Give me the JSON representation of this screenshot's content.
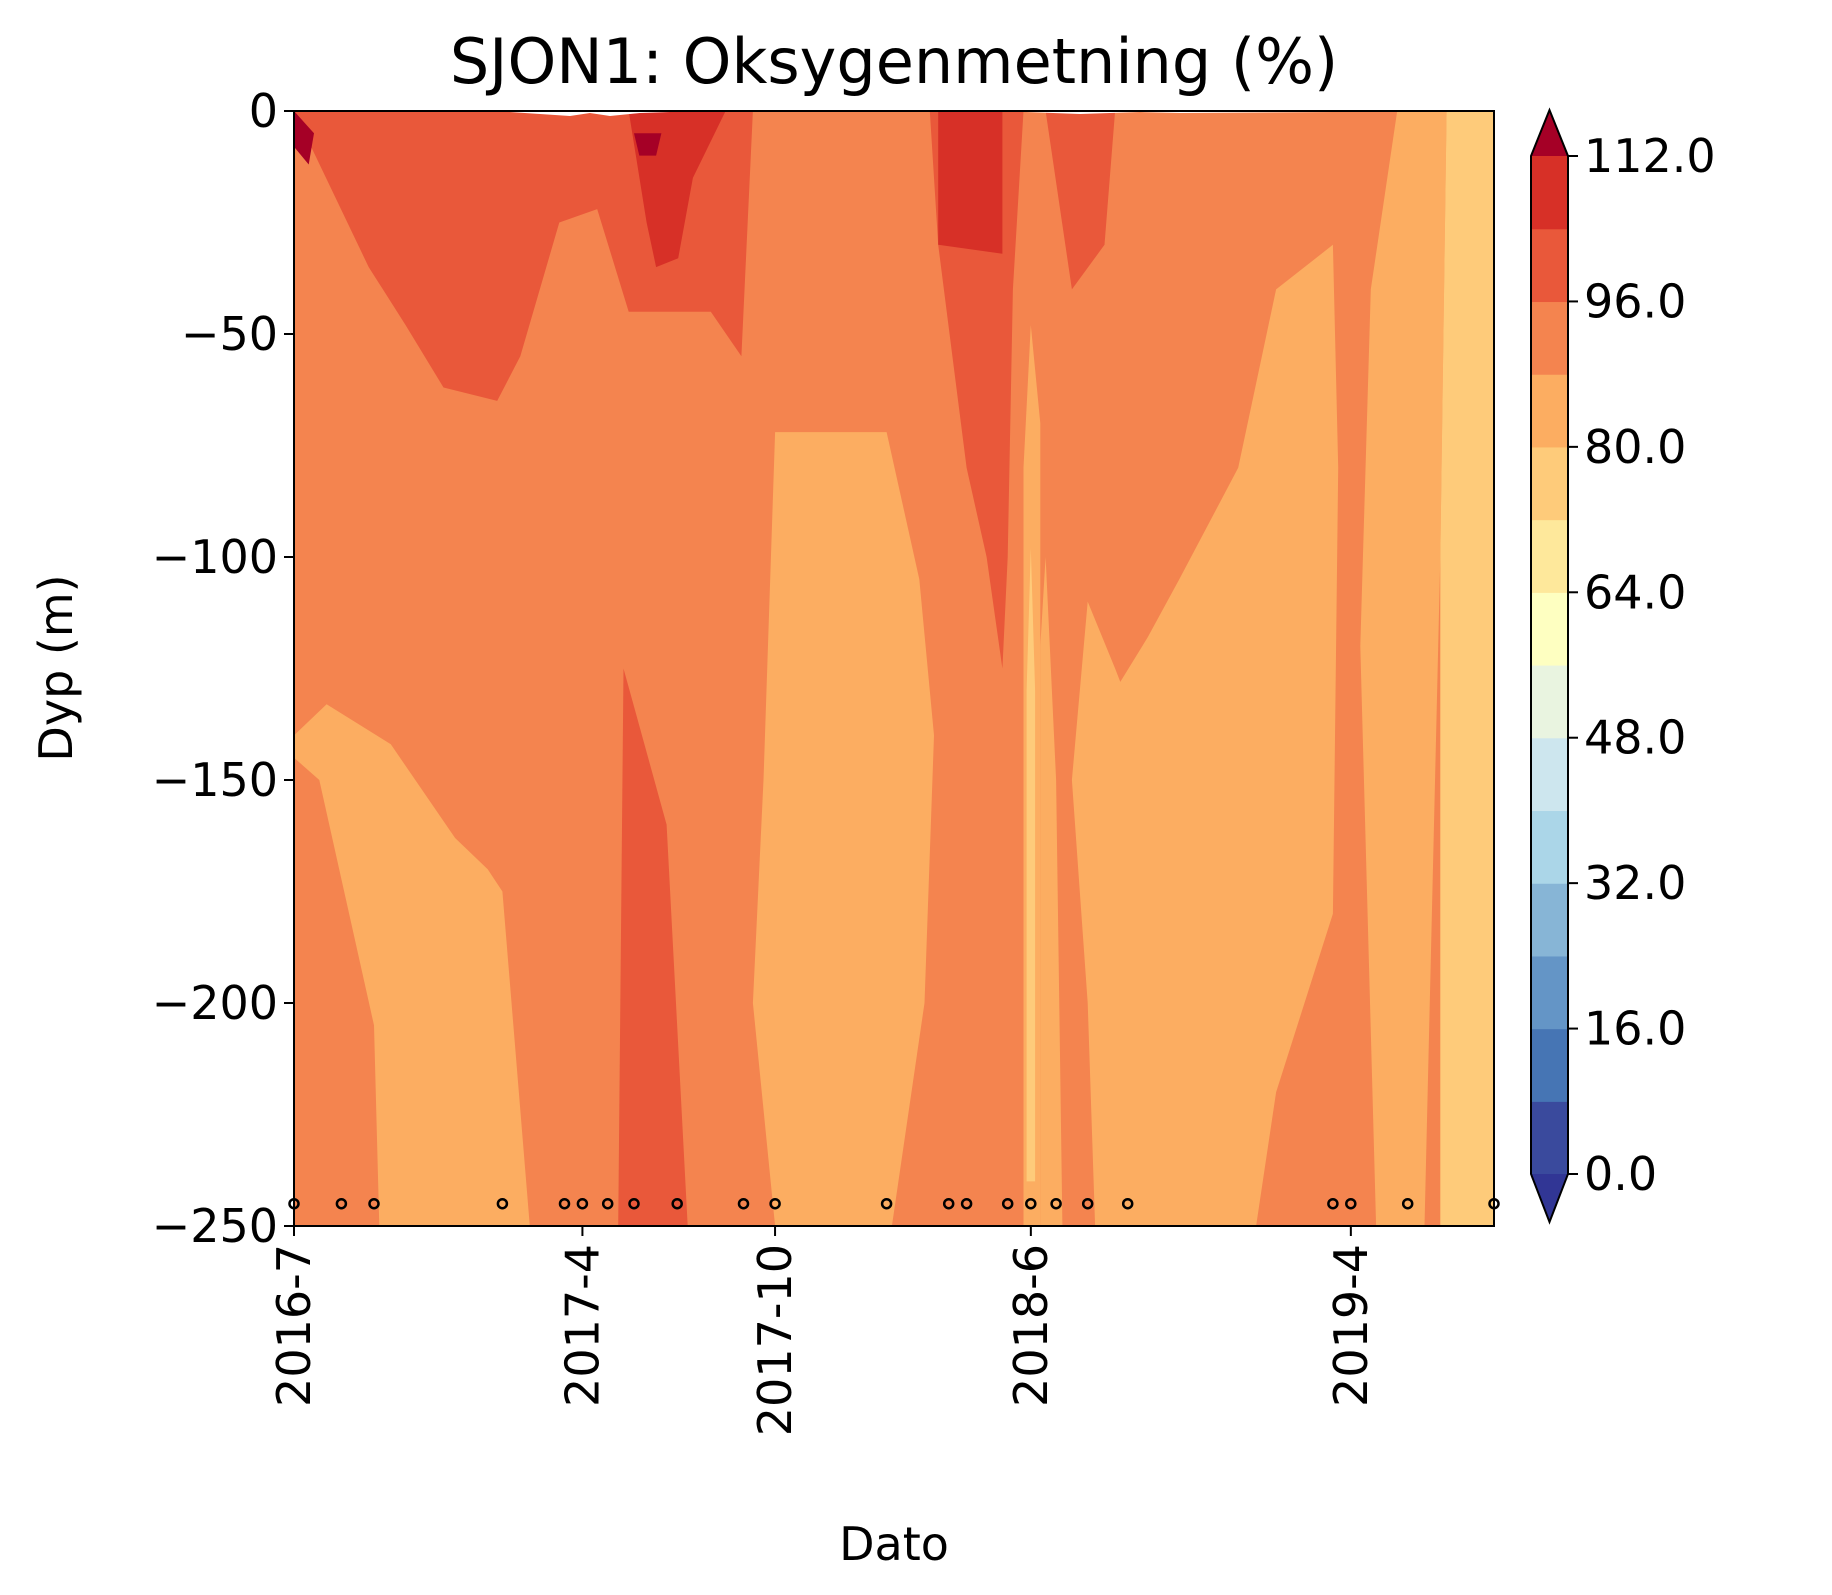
{
  "chart_data": {
    "type": "heatmap",
    "subtype": "filled-contour",
    "title": "SJON1: Oksygenmetning (%)",
    "xlabel": "Dato",
    "ylabel": "Dyp (m)",
    "xticks": [
      "2016-7",
      "2017-4",
      "2017-10",
      "2018-6",
      "2019-4"
    ],
    "xtick_dates": [
      "2016-07-01",
      "2017-04-01",
      "2017-10-01",
      "2018-06-01",
      "2019-04-01"
    ],
    "xlim": [
      "2016-07-01",
      "2019-08-15"
    ],
    "ylim": [
      -250,
      0
    ],
    "yticks": [
      0,
      -50,
      -100,
      -150,
      -200,
      -250
    ],
    "ytick_labels": [
      "0",
      "−50",
      "−100",
      "−150",
      "−200",
      "−250"
    ],
    "sample_dates": [
      "2016-07-01",
      "2016-08-15",
      "2016-09-15",
      "2017-01-15",
      "2017-03-15",
      "2017-04-01",
      "2017-04-25",
      "2017-05-20",
      "2017-06-30",
      "2017-09-01",
      "2017-10-01",
      "2018-01-15",
      "2018-03-15",
      "2018-04-01",
      "2018-05-10",
      "2018-06-01",
      "2018-06-25",
      "2018-07-25",
      "2018-09-01",
      "2019-03-15",
      "2019-04-01",
      "2019-05-25",
      "2019-08-15"
    ],
    "sample_depth": -245,
    "bands": [
      {
        "range": [
          80,
          88
        ],
        "color": "#fcad61",
        "polygons": [
          [
            [
              "2016-07-01",
              -140
            ],
            [
              "2016-08-01",
              -133
            ],
            [
              "2016-10-01",
              -142
            ],
            [
              "2016-12-01",
              -163
            ],
            [
              "2017-01-01",
              -170
            ],
            [
              "2017-01-15",
              -175
            ],
            [
              "2017-02-10",
              -250
            ],
            [
              "2016-09-20",
              -250
            ],
            [
              "2016-09-15",
              -205
            ],
            [
              "2016-07-25",
              -150
            ],
            [
              "2016-07-01",
              -145
            ]
          ],
          [
            [
              "2017-09-20",
              -150
            ],
            [
              "2017-10-01",
              -72
            ],
            [
              "2018-01-15",
              -72
            ],
            [
              "2018-02-15",
              -105
            ],
            [
              "2018-03-01",
              -140
            ],
            [
              "2018-02-20",
              -200
            ],
            [
              "2018-01-20",
              -250
            ],
            [
              "2017-10-01",
              -250
            ],
            [
              "2017-09-10",
              -200
            ]
          ],
          [
            [
              "2018-06-01",
              -48
            ],
            [
              "2018-06-10",
              -70
            ],
            [
              "2018-06-10",
              -250
            ],
            [
              "2018-05-25",
              -250
            ],
            [
              "2018-05-25",
              -80
            ]
          ],
          [
            [
              "2018-06-10",
              -120
            ],
            [
              "2018-06-15",
              -100
            ],
            [
              "2018-06-25",
              -150
            ],
            [
              "2018-07-01",
              -250
            ],
            [
              "2018-06-10",
              -250
            ]
          ],
          [
            [
              "2018-07-10",
              -150
            ],
            [
              "2018-07-25",
              -110
            ],
            [
              "2018-08-20",
              -125
            ],
            [
              "2018-08-25",
              -128
            ],
            [
              "2018-09-20",
              -118
            ],
            [
              "2018-10-20",
              -105
            ],
            [
              "2018-12-15",
              -80
            ],
            [
              "2019-01-20",
              -40
            ],
            [
              "2019-03-15",
              -30
            ],
            [
              "2019-03-20",
              -80
            ],
            [
              "2019-03-15",
              -180
            ],
            [
              "2019-01-20",
              -220
            ],
            [
              "2019-01-01",
              -250
            ],
            [
              "2018-08-01",
              -250
            ],
            [
              "2018-07-25",
              -200
            ]
          ],
          [
            [
              "2019-04-10",
              -120
            ],
            [
              "2019-04-20",
              -40
            ],
            [
              "2019-05-15",
              0
            ],
            [
              "2019-07-01",
              0
            ],
            [
              "2019-06-25",
              -100
            ],
            [
              "2019-06-10",
              -250
            ],
            [
              "2019-04-25",
              -250
            ]
          ]
        ]
      },
      {
        "range": [
          72,
          80
        ],
        "color": "#fecb7a",
        "polygons": [
          [
            [
              "2018-06-01",
              -98
            ],
            [
              "2018-06-05",
              -130
            ],
            [
              "2018-06-05",
              -240
            ],
            [
              "2018-05-28",
              -240
            ],
            [
              "2018-05-28",
              -130
            ]
          ],
          [
            [
              "2019-07-01",
              0
            ],
            [
              "2019-08-15",
              0
            ],
            [
              "2019-08-15",
              -250
            ],
            [
              "2019-06-25",
              -250
            ],
            [
              "2019-06-25",
              -100
            ]
          ]
        ]
      },
      {
        "range": [
          88,
          96
        ],
        "color": "#f4844f",
        "note": "background band filling the rest of the plot"
      },
      {
        "range": [
          96,
          104
        ],
        "color": "#e9583a",
        "polygons": [
          [
            [
              "2016-07-01",
              0
            ],
            [
              "2016-09-10",
              -35
            ],
            [
              "2016-10-15",
              -48
            ],
            [
              "2016-11-20",
              -62
            ],
            [
              "2017-01-10",
              -65
            ],
            [
              "2017-02-01",
              -55
            ],
            [
              "2017-03-10",
              -25
            ],
            [
              "2017-04-15",
              -22
            ],
            [
              "2017-05-15",
              -45
            ],
            [
              "2017-06-15",
              -45
            ],
            [
              "2017-08-01",
              -45
            ],
            [
              "2017-08-30",
              -55
            ],
            [
              "2017-09-10",
              0
            ]
          ],
          [
            [
              "2018-02-25",
              0
            ],
            [
              "2018-03-05",
              -30
            ],
            [
              "2018-04-01",
              -80
            ],
            [
              "2018-04-20",
              -100
            ],
            [
              "2018-05-05",
              -125
            ],
            [
              "2018-05-10",
              -100
            ],
            [
              "2018-05-15",
              -40
            ],
            [
              "2018-05-25",
              0
            ]
          ],
          [
            [
              "2018-06-15",
              0
            ],
            [
              "2018-07-10",
              -40
            ],
            [
              "2018-08-10",
              -30
            ],
            [
              "2018-08-20",
              0
            ]
          ],
          [
            [
              "2017-05-10",
              -125
            ],
            [
              "2017-06-20",
              -160
            ],
            [
              "2017-07-10",
              -250
            ],
            [
              "2017-05-05",
              -250
            ]
          ]
        ]
      },
      {
        "range": [
          104,
          112
        ],
        "color": "#d73027",
        "polygons": [
          [
            [
              "2017-05-15",
              0
            ],
            [
              "2017-06-01",
              -25
            ],
            [
              "2017-06-10",
              -35
            ],
            [
              "2017-07-01",
              -33
            ],
            [
              "2017-07-15",
              -15
            ],
            [
              "2017-08-15",
              0
            ]
          ],
          [
            [
              "2018-03-05",
              0
            ],
            [
              "2018-05-05",
              0
            ],
            [
              "2018-05-05",
              -32
            ],
            [
              "2018-03-05",
              -30
            ]
          ]
        ]
      },
      {
        "range": [
          112,
          null
        ],
        "color": "#a50026",
        "polygons": [
          [
            [
              "2016-07-01",
              0
            ],
            [
              "2016-07-20",
              -5
            ],
            [
              "2016-07-15",
              -12
            ],
            [
              "2016-07-01",
              -8
            ]
          ],
          [
            [
              "2017-05-20",
              -5
            ],
            [
              "2017-06-15",
              -5
            ],
            [
              "2017-06-10",
              -10
            ],
            [
              "2017-05-25",
              -10
            ]
          ]
        ]
      }
    ],
    "colorbar": {
      "ticks": [
        "0.0",
        "16.0",
        "32.0",
        "48.0",
        "64.0",
        "80.0",
        "96.0",
        "112.0"
      ],
      "levels": [
        0,
        8,
        16,
        24,
        32,
        40,
        48,
        56,
        64,
        72,
        80,
        88,
        96,
        104,
        112
      ],
      "colors": [
        "#3a4a9d",
        "#4675b4",
        "#6495c6",
        "#87b5d6",
        "#abd6e8",
        "#cde6ee",
        "#e9f4e0",
        "#feffc1",
        "#fee89b",
        "#fecb7a",
        "#fcad61",
        "#f4844f",
        "#e9583a",
        "#d73027"
      ],
      "extend_min_color": "#313695",
      "extend_max_color": "#a50026"
    }
  }
}
